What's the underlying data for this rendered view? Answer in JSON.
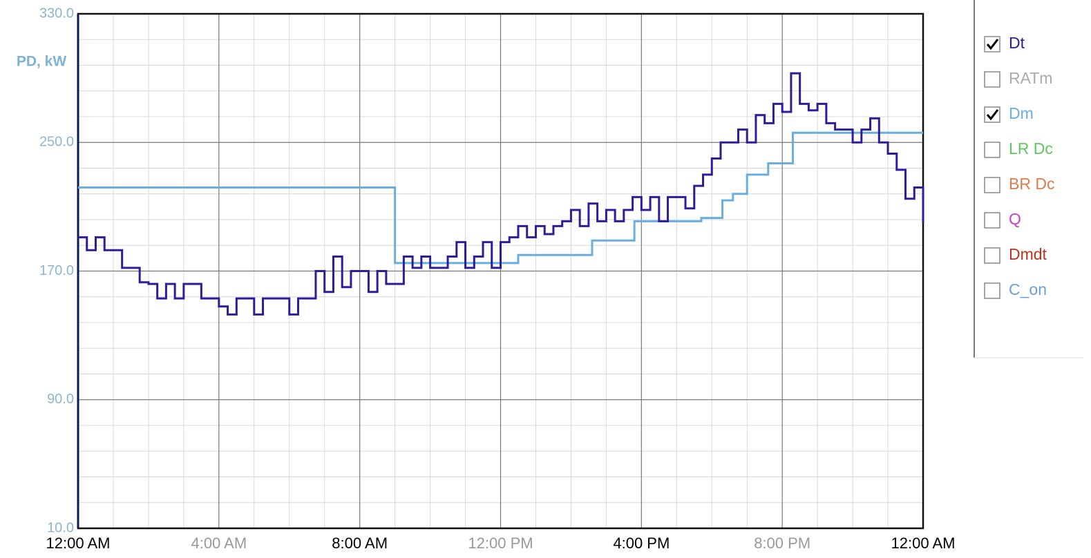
{
  "chart_data": {
    "type": "step-line",
    "y_label": "PD, kW",
    "xlim": [
      0,
      24
    ],
    "xticks": [
      {
        "value": 0,
        "label": "12:00 AM"
      },
      {
        "value": 4,
        "label": "4:00 AM"
      },
      {
        "value": 8,
        "label": "8:00 AM"
      },
      {
        "value": 12,
        "label": "12:00 PM"
      },
      {
        "value": 16,
        "label": "4:00 PM"
      },
      {
        "value": 20,
        "label": "8:00 PM"
      },
      {
        "value": 24,
        "label": "12:00 AM"
      }
    ],
    "xticks_minor": [
      1,
      2,
      3,
      5,
      6,
      7,
      9,
      10,
      11,
      13,
      14,
      15,
      17,
      18,
      19,
      21,
      22,
      23
    ],
    "ylim": [
      10,
      330
    ],
    "yticks": [
      {
        "value": 10,
        "label": "10.0"
      },
      {
        "value": 90,
        "label": "90.0"
      },
      {
        "value": 170,
        "label": "170.0"
      },
      {
        "value": 250,
        "label": "250.0"
      },
      {
        "value": 330,
        "label": "330.0"
      }
    ],
    "yticks_minor": [
      26,
      42,
      58,
      74,
      106,
      122,
      138,
      154,
      186,
      202,
      218,
      234,
      266,
      282,
      298,
      314
    ],
    "grid": true,
    "series": [
      {
        "name": "Dt",
        "color": "#2e1c9a",
        "checked": true,
        "x": [
          0,
          0.25,
          0.5,
          0.75,
          1,
          1.25,
          1.5,
          1.75,
          2,
          2.25,
          2.5,
          2.75,
          3,
          3.25,
          3.5,
          3.75,
          4,
          4.25,
          4.5,
          4.75,
          5,
          5.25,
          5.5,
          5.75,
          6,
          6.25,
          6.5,
          6.75,
          7,
          7.25,
          7.5,
          7.75,
          8,
          8.25,
          8.5,
          8.75,
          9,
          9.25,
          9.5,
          9.75,
          10,
          10.25,
          10.5,
          10.75,
          11,
          11.25,
          11.5,
          11.75,
          12,
          12.25,
          12.5,
          12.75,
          13,
          13.25,
          13.5,
          13.75,
          14,
          14.25,
          14.5,
          14.75,
          15,
          15.25,
          15.5,
          15.75,
          16,
          16.25,
          16.5,
          16.75,
          17,
          17.25,
          17.5,
          17.75,
          18,
          18.25,
          18.5,
          18.75,
          19,
          19.25,
          19.5,
          19.75,
          20,
          20.25,
          20.5,
          20.75,
          21,
          21.25,
          21.5,
          21.75,
          22,
          22.25,
          22.5,
          22.75,
          23,
          23.25,
          23.5,
          23.75,
          24
        ],
        "values": [
          191,
          183,
          191,
          183,
          183,
          172,
          172,
          163,
          162,
          153,
          162,
          153,
          162,
          162,
          153,
          153,
          148,
          143,
          153,
          153,
          143,
          153,
          153,
          153,
          143,
          153,
          153,
          170,
          157,
          179,
          160,
          170,
          170,
          157,
          170,
          162,
          162,
          179,
          172,
          179,
          172,
          172,
          179,
          188,
          172,
          179,
          188,
          172,
          188,
          191,
          198,
          191,
          198,
          193,
          198,
          201,
          208,
          198,
          212,
          201,
          208,
          201,
          208,
          216,
          208,
          216,
          201,
          216,
          216,
          209,
          223,
          230,
          240,
          250,
          250,
          258,
          250,
          267,
          262,
          274,
          269,
          293,
          274,
          270,
          274,
          262,
          258,
          258,
          250,
          258,
          265,
          250,
          243,
          233,
          215,
          222,
          200
        ]
      },
      {
        "name": "RATm",
        "color": "#aaaaaa",
        "checked": false
      },
      {
        "name": "Dm",
        "color": "#6aaee0",
        "checked": true,
        "x": [
          0,
          9,
          12.5,
          14.6,
          15.8,
          17.7,
          18.3,
          18.6,
          19,
          19.6,
          20.3,
          24
        ],
        "values": [
          222,
          175,
          180,
          189,
          201,
          203,
          214,
          218,
          230,
          237,
          256,
          256
        ]
      },
      {
        "name": "LR Dc",
        "color": "#5fc85f",
        "checked": false
      },
      {
        "name": "BR Dc",
        "color": "#e07a4a",
        "checked": false
      },
      {
        "name": "Q",
        "color": "#d03cc0",
        "checked": false
      },
      {
        "name": "Dmdt",
        "color": "#c0301c",
        "checked": false
      },
      {
        "name": "C_on",
        "color": "#6a9ed8",
        "checked": false
      }
    ]
  }
}
